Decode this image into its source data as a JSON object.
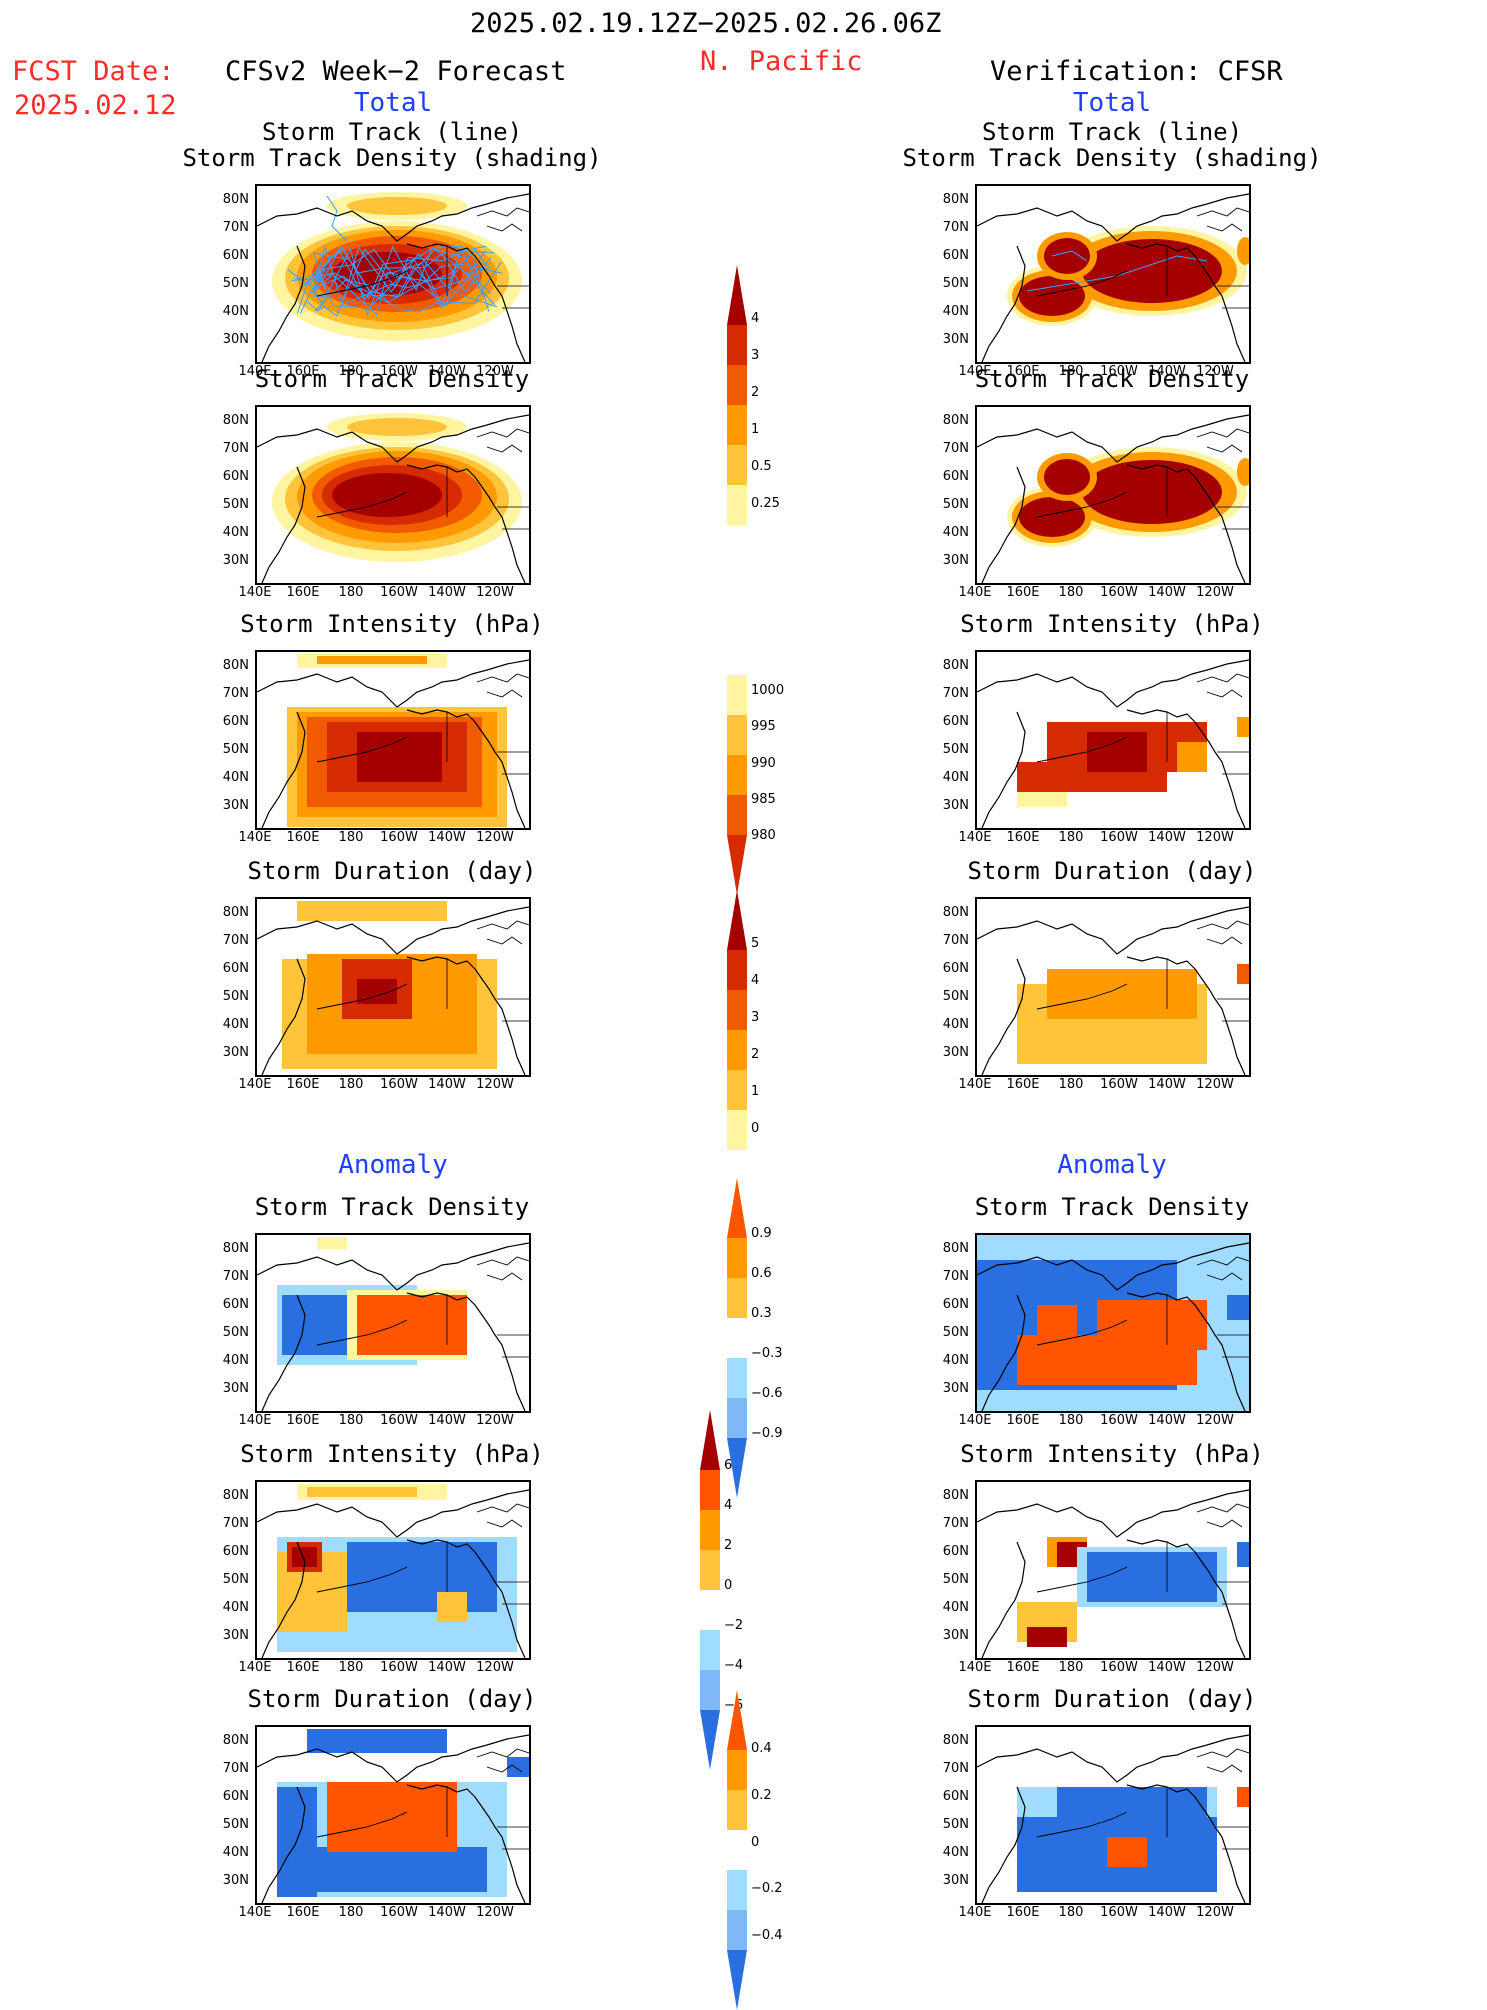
{
  "header": {
    "date_range": "2025.02.19.12Z−2025.02.26.06Z",
    "region": "N. Pacific",
    "fcst_label": "FCST Date:",
    "fcst_date": "2025.02.12",
    "left_title": "CFSv2 Week−2 Forecast",
    "right_title": "Verification: CFSR",
    "total_label": "Total",
    "anomaly_label": "Anomaly"
  },
  "axes": {
    "lat_labels": [
      "80N",
      "70N",
      "60N",
      "50N",
      "40N",
      "30N"
    ],
    "lon_labels": [
      "140E",
      "160E",
      "180",
      "160W",
      "140W",
      "120W"
    ]
  },
  "rows": [
    {
      "id": "track",
      "title_line1": "Storm Track (line)",
      "title_line2": "Storm Track Density (shading)"
    },
    {
      "id": "density",
      "title_line1": "Storm Track Density"
    },
    {
      "id": "intensity",
      "title_line1": "Storm Intensity (hPa)"
    },
    {
      "id": "duration",
      "title_line1": "Storm Duration (day)"
    },
    {
      "id": "anom_density",
      "title_line1": "Storm Track Density"
    },
    {
      "id": "anom_intensity",
      "title_line1": "Storm Intensity (hPa)"
    },
    {
      "id": "anom_duration",
      "title_line1": "Storm Duration (day)"
    }
  ],
  "colorbars": {
    "density": [
      "4",
      "3",
      "2",
      "1",
      "0.5",
      "0.25"
    ],
    "intensity": [
      "1000",
      "995",
      "990",
      "985",
      "980"
    ],
    "duration": [
      "5",
      "4",
      "3",
      "2",
      "1",
      "0"
    ],
    "anom_density": [
      "0.9",
      "0.6",
      "0.3",
      "−0.3",
      "−0.6",
      "−0.9"
    ],
    "anom_intensity": [
      "6",
      "4",
      "2",
      "0",
      "−2",
      "−4",
      "−6"
    ],
    "anom_duration": [
      "0.4",
      "0.2",
      "0",
      "−0.2",
      "−0.4"
    ]
  },
  "colors": {
    "dark_red": "#a50000",
    "red": "#d62a00",
    "orange_red": "#f25a00",
    "orange": "#ff9a00",
    "light_orange": "#ffc43a",
    "pale_yellow": "#fff4a0",
    "anom_pos": "#ff5500",
    "anom_neg": "#2a6fe0",
    "anom_light_neg": "#9fdcff",
    "track_line": "#3aa0ff"
  }
}
